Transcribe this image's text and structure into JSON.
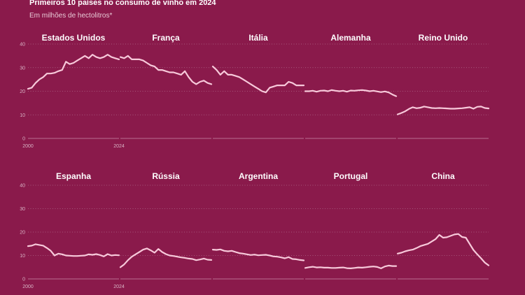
{
  "header": {
    "title": "Primeiros 10 países no consumo de vinho em 2024",
    "subtitle": "Em milhões de hectolitros*"
  },
  "colors": {
    "background": "#8a1a4b",
    "line": "#f7c9da",
    "text": "#ffffff"
  },
  "chart_data": {
    "type": "line",
    "title": "Primeiros 10 países no consumo de vinho em 2024",
    "subtitle": "Em milhões de hectolitros*",
    "x_range": [
      2000,
      2024
    ],
    "x_tick_labels": [
      "2000",
      "2024"
    ],
    "ylim": [
      0,
      40
    ],
    "y_ticks": [
      0,
      10,
      20,
      30,
      40
    ],
    "grid": true,
    "panels": [
      {
        "name": "Estados Unidos",
        "x": [
          2000,
          2001,
          2002,
          2003,
          2004,
          2005,
          2006,
          2007,
          2008,
          2009,
          2010,
          2011,
          2012,
          2013,
          2014,
          2015,
          2016,
          2017,
          2018,
          2019,
          2020,
          2021,
          2022,
          2023,
          2024
        ],
        "values": [
          21,
          21.5,
          23.5,
          25,
          26,
          27.5,
          27.5,
          27.8,
          28.5,
          29,
          32.5,
          31.5,
          32,
          33,
          34,
          35,
          34,
          35.5,
          34.5,
          34,
          34.5,
          35.5,
          34.5,
          34,
          33.5
        ]
      },
      {
        "name": "França",
        "x": [
          2000,
          2001,
          2002,
          2003,
          2004,
          2005,
          2006,
          2007,
          2008,
          2009,
          2010,
          2011,
          2012,
          2013,
          2014,
          2015,
          2016,
          2017,
          2018,
          2019,
          2020,
          2021,
          2022,
          2023,
          2024
        ],
        "values": [
          34.5,
          34,
          35,
          33.5,
          33.5,
          33.5,
          33,
          32,
          31,
          30.5,
          29,
          29,
          28.5,
          28,
          28,
          27.5,
          27,
          28.5,
          26,
          24,
          23,
          24,
          24.5,
          23.5,
          23
        ]
      },
      {
        "name": "Itália",
        "x": [
          2000,
          2001,
          2002,
          2003,
          2004,
          2005,
          2006,
          2007,
          2008,
          2009,
          2010,
          2011,
          2012,
          2013,
          2014,
          2015,
          2016,
          2017,
          2018,
          2019,
          2020,
          2021,
          2022,
          2023,
          2024
        ],
        "values": [
          30.5,
          29,
          27,
          28.5,
          27,
          27,
          26.5,
          26,
          25,
          24,
          23,
          22,
          21,
          20,
          19.5,
          21.5,
          22,
          22.5,
          22.5,
          22.5,
          24,
          23.5,
          22.5,
          22.5,
          22.5
        ]
      },
      {
        "name": "Alemanha",
        "x": [
          2000,
          2001,
          2002,
          2003,
          2004,
          2005,
          2006,
          2007,
          2008,
          2009,
          2010,
          2011,
          2012,
          2013,
          2014,
          2015,
          2016,
          2017,
          2018,
          2019,
          2020,
          2021,
          2022,
          2023,
          2024
        ],
        "values": [
          20,
          20,
          20.2,
          19.8,
          20.2,
          20.3,
          20,
          20.5,
          20.2,
          20,
          20.2,
          19.8,
          20.3,
          20.2,
          20.4,
          20.5,
          20.3,
          20,
          20.2,
          19.9,
          19.6,
          19.9,
          19.5,
          18.6,
          17.9
        ]
      },
      {
        "name": "Reino Unido",
        "x": [
          2000,
          2001,
          2002,
          2003,
          2004,
          2005,
          2006,
          2007,
          2008,
          2009,
          2010,
          2011,
          2012,
          2013,
          2014,
          2015,
          2016,
          2017,
          2018,
          2019,
          2020,
          2021,
          2022,
          2023,
          2024
        ],
        "values": [
          10.2,
          10.8,
          11.5,
          12.5,
          13.2,
          12.8,
          13,
          13.5,
          13.2,
          12.9,
          12.8,
          12.9,
          12.8,
          12.7,
          12.6,
          12.6,
          12.7,
          12.8,
          13,
          13.2,
          12.6,
          13.4,
          13.5,
          12.9,
          12.7
        ]
      },
      {
        "name": "Espanha",
        "x": [
          2000,
          2001,
          2002,
          2003,
          2004,
          2005,
          2006,
          2007,
          2008,
          2009,
          2010,
          2011,
          2012,
          2013,
          2014,
          2015,
          2016,
          2017,
          2018,
          2019,
          2020,
          2021,
          2022,
          2023,
          2024
        ],
        "values": [
          14,
          14.2,
          14.8,
          14.5,
          14.2,
          13.2,
          12,
          10,
          10.8,
          10.5,
          10,
          9.9,
          9.8,
          9.8,
          9.9,
          10,
          10.5,
          10.3,
          10.6,
          10.2,
          9.6,
          10.6,
          10,
          10.2,
          10.1
        ]
      },
      {
        "name": "Rússia",
        "x": [
          2000,
          2001,
          2002,
          2003,
          2004,
          2005,
          2006,
          2007,
          2008,
          2009,
          2010,
          2011,
          2012,
          2013,
          2014,
          2015,
          2016,
          2017,
          2018,
          2019,
          2020,
          2021,
          2022,
          2023,
          2024
        ],
        "values": [
          5,
          6.2,
          8,
          9.5,
          10.5,
          11.5,
          12.5,
          13,
          12.2,
          11.2,
          12.8,
          11.5,
          10.6,
          10,
          9.8,
          9.5,
          9.2,
          9,
          8.7,
          8.5,
          8,
          8.3,
          8.7,
          8.2,
          8.1
        ]
      },
      {
        "name": "Argentina",
        "x": [
          2000,
          2001,
          2002,
          2003,
          2004,
          2005,
          2006,
          2007,
          2008,
          2009,
          2010,
          2011,
          2012,
          2013,
          2014,
          2015,
          2016,
          2017,
          2018,
          2019,
          2020,
          2021,
          2022,
          2023,
          2024
        ],
        "values": [
          12.5,
          12.4,
          12.6,
          12,
          11.8,
          12,
          11.5,
          11,
          10.8,
          10.5,
          10.2,
          10.4,
          10.1,
          10.2,
          10.3,
          10,
          9.6,
          9.5,
          9.2,
          8.8,
          9.3,
          8.5,
          8.4,
          8.1,
          7.9
        ]
      },
      {
        "name": "Portugal",
        "x": [
          2000,
          2001,
          2002,
          2003,
          2004,
          2005,
          2006,
          2007,
          2008,
          2009,
          2010,
          2011,
          2012,
          2013,
          2014,
          2015,
          2016,
          2017,
          2018,
          2019,
          2020,
          2021,
          2022,
          2023,
          2024
        ],
        "values": [
          4.7,
          5,
          5.2,
          4.9,
          5,
          4.8,
          4.8,
          4.7,
          4.7,
          4.8,
          4.9,
          4.6,
          4.5,
          4.7,
          4.9,
          4.8,
          5,
          5.2,
          5.3,
          5.1,
          4.5,
          5.3,
          5.7,
          5.5,
          5.5
        ]
      },
      {
        "name": "China",
        "x": [
          2000,
          2001,
          2002,
          2003,
          2004,
          2005,
          2006,
          2007,
          2008,
          2009,
          2010,
          2011,
          2012,
          2013,
          2014,
          2015,
          2016,
          2017,
          2018,
          2019,
          2020,
          2021,
          2022,
          2023,
          2024
        ],
        "values": [
          10.8,
          11.2,
          11.8,
          12.2,
          12.5,
          13.2,
          14,
          14.5,
          15,
          16,
          17,
          18.8,
          17.6,
          17.8,
          18.4,
          19,
          19.2,
          17.9,
          17.6,
          15,
          12.4,
          10.5,
          8.8,
          7,
          5.8
        ]
      }
    ]
  }
}
